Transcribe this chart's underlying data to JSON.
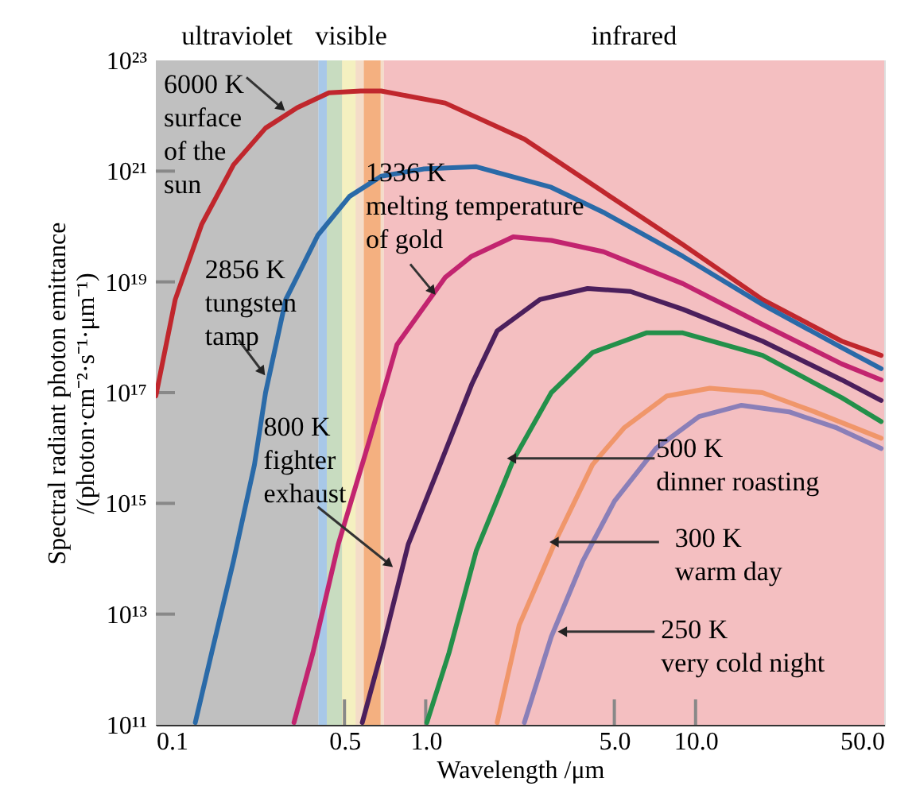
{
  "chart_data": {
    "type": "line",
    "xlabel": "Wavelength /μm",
    "ylabel": "Spectral radiant photon emittance\n/(photon·cm⁻²·s⁻¹·μm⁻¹)",
    "log": "xy",
    "line_style": "solid",
    "marker": "none",
    "xlim": [
      0.1,
      50
    ],
    "ylim": [
      100000000000.0,
      1e+23
    ],
    "xticks": [
      0.1,
      0.5,
      {
        "value": 1,
        "label": "1.0"
      },
      {
        "value": 5,
        "label": "5.0"
      },
      {
        "value": 10,
        "label": "10.0"
      },
      {
        "value": 50,
        "label": "50.0"
      }
    ],
    "yticks": [
      {
        "value": 100000000000.0,
        "label": "10¹¹"
      },
      {
        "value": 10000000000000.0,
        "label": "10¹³"
      },
      {
        "value": 1000000000000000.0,
        "label": "10¹⁵"
      },
      {
        "value": 1e+17,
        "label": "10¹⁷"
      },
      {
        "value": 1e+19,
        "label": "10¹⁹"
      },
      {
        "value": 1e+21,
        "label": "10²¹"
      },
      {
        "value": 1e+23,
        "label": "10²³"
      }
    ],
    "bands": [
      {
        "axis": "x",
        "from": 0.1,
        "to": 0.4,
        "label": "ultraviolet",
        "color": "#c0c0c0"
      },
      {
        "axis": "x",
        "from": 0.4,
        "to": 0.7,
        "label": "visible",
        "color": "#f4dcc8"
      },
      {
        "axis": "x",
        "from": 0.4,
        "to": 0.43,
        "color": "#a8c8e8"
      },
      {
        "axis": "x",
        "from": 0.43,
        "to": 0.49,
        "color": "#c8dcc0"
      },
      {
        "axis": "x",
        "from": 0.49,
        "to": 0.55,
        "color": "#f4f0c0"
      },
      {
        "axis": "x",
        "from": 0.59,
        "to": 0.68,
        "color": "#f4b080"
      },
      {
        "axis": "x",
        "from": 0.7,
        "to": 50,
        "label": "infrared",
        "color": "#f4bfc1"
      }
    ],
    "series": [
      {
        "color": "#c0272d",
        "x": [
          0.1,
          0.118,
          0.148,
          0.194,
          0.255,
          0.334,
          0.438,
          0.574,
          0.684,
          1.18,
          2.32,
          4.56,
          8.97,
          17.7,
          34.8,
          48.7
        ],
        "values": [
          8.7e+16,
          4.8e+18,
          1.1e+20,
          1.3e+21,
          6e+21,
          1.4e+22,
          2.6e+22,
          2.8e+22,
          2.8e+22,
          1.7e+22,
          3.8e+21,
          4.2e+20,
          4.7e+19,
          4.8e+18,
          8.5e+17,
          4.7e+17
        ]
      },
      {
        "color": "#2a6aa8",
        "x": [
          0.14,
          0.161,
          0.194,
          0.232,
          0.255,
          0.303,
          0.398,
          0.522,
          0.684,
          0.986,
          1.54,
          2.92,
          4.56,
          8.97,
          17.7,
          34.8,
          48.7
        ],
        "values": [
          110000000000.0,
          2000000000000.0,
          91000000000000.0,
          5000000000000000.0,
          1e+17,
          4.8e+18,
          6.9e+19,
          3.5e+20,
          8.1e+20,
          1.1e+21,
          1.2e+21,
          5.1e+20,
          1.8e+20,
          2.9e+19,
          3.9e+18,
          6.5e+17,
          2.7e+17
        ]
      },
      {
        "color": "#c2246f",
        "x": [
          0.325,
          0.382,
          0.474,
          0.622,
          0.783,
          1.18,
          1.48,
          2.11,
          2.92,
          4.56,
          8.97,
          17.7,
          34.8,
          48.7
        ],
        "values": [
          110000000000.0,
          2000000000000.0,
          180000000000000.0,
          1.5e+16,
          7.4e+17,
          1.2e+19,
          2.9e+19,
          6.5e+19,
          5.6e+19,
          3.5e+19,
          9.3e+18,
          1.7e+18,
          3.3e+17,
          1.7e+17
        ]
      },
      {
        "color": "#4b1f5c",
        "x": [
          0.582,
          0.684,
          0.861,
          1.13,
          1.48,
          1.84,
          2.65,
          3.98,
          5.74,
          8.97,
          17.7,
          34.8,
          48.7
        ],
        "values": [
          110000000000.0,
          2000000000000.0,
          180000000000000.0,
          5000000000000000.0,
          1.4e+17,
          1.3e+18,
          4.8e+18,
          7.6e+18,
          6.7e+18,
          3.2e+18,
          8.5e+17,
          1.7e+17,
          7.2e+16
        ]
      },
      {
        "color": "#23904a",
        "x": [
          1.01,
          1.22,
          1.54,
          2.11,
          2.92,
          4.15,
          6.57,
          8.97,
          17.7,
          34.8,
          48.7
        ],
        "values": [
          110000000000.0,
          2000000000000.0,
          140000000000000.0,
          6000000000000000.0,
          1e+17,
          5.3e+17,
          1.2e+18,
          1.2e+18,
          4.7e+17,
          8.1e+16,
          3e+16
        ]
      },
      {
        "color": "#f0966a",
        "x": [
          1.84,
          2.22,
          3.03,
          4.15,
          5.43,
          7.83,
          11.3,
          17.7,
          27.6,
          48.7
        ],
        "values": [
          110000000000.0,
          6300000000000.0,
          210000000000000.0,
          5000000000000000.0,
          2.3e+16,
          8.7e+16,
          1.2e+17,
          1e+17,
          4.5e+16,
          1.5e+16
        ]
      },
      {
        "color": "#8a7fb8",
        "x": [
          2.32,
          2.92,
          3.82,
          5.01,
          7.13,
          10.3,
          14.8,
          22.2,
          33.4,
          48.7
        ],
        "values": [
          110000000000.0,
          3900000000000.0,
          91000000000000.0,
          1100000000000000.0,
          9800000000000000.0,
          3.7e+16,
          5.9e+16,
          4.5e+16,
          2.3e+16,
          9800000000000000.0
        ]
      }
    ],
    "annotations": [
      {
        "text": "6000 K\nsurface\nof the\nsun",
        "x": 0.292,
        "y": 1.4e+22
      },
      {
        "text": "2856 K\ntungsten\ntamp",
        "x": 0.248,
        "y": 2.4e+17
      },
      {
        "text": "1336 K\nmelting temperature\nof gold",
        "x": 1.06,
        "y": 6.8e+18
      },
      {
        "text": "800 K\nfighter\nexhaust",
        "x": 0.733,
        "y": 80000000000000.0
      },
      {
        "text": "500 K\ndinner roasting",
        "x": 2.08,
        "y": 6500000000000000.0
      },
      {
        "text": "300 K\nwarm day",
        "x": 2.99,
        "y": 200000000000000.0
      },
      {
        "text": "250 K\nvery cold night",
        "x": 3.21,
        "y": 4800000000000.0
      }
    ]
  }
}
